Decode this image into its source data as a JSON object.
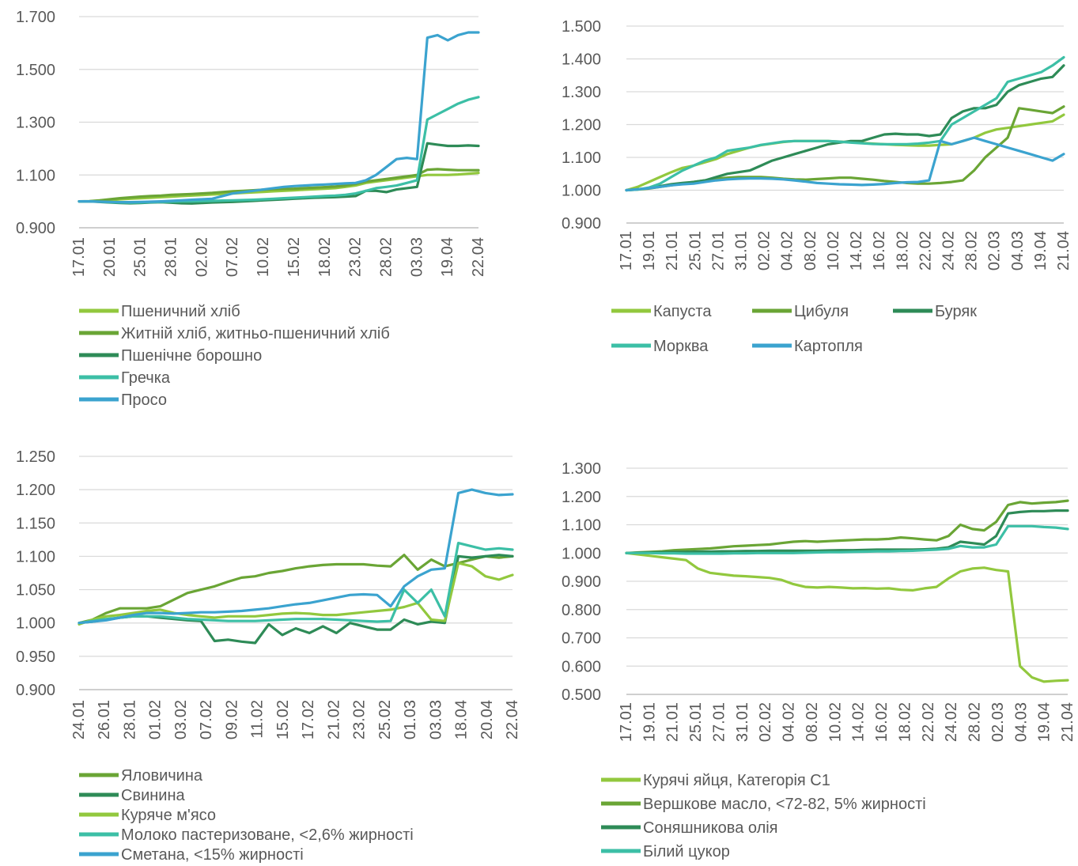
{
  "chart_data": [
    {
      "id": "bread-grains",
      "type": "line",
      "ylim": [
        0.9,
        1.7
      ],
      "y_ticks": [
        "0.900",
        "1.100",
        "1.300",
        "1.500",
        "1.700"
      ],
      "y_tick_values": [
        0.9,
        1.1,
        1.3,
        1.5,
        1.7
      ],
      "x_tick_labels": [
        "17.01",
        "20.01",
        "25.01",
        "28.01",
        "02.02",
        "07.02",
        "10.02",
        "15.02",
        "18.02",
        "23.02",
        "28.02",
        "03.03",
        "19.04",
        "22.04"
      ],
      "legend_layout": "column",
      "series": [
        {
          "name": "Пшеничний хліб",
          "color": "#92c83e",
          "values": [
            1.0,
            1.0,
            1.002,
            1.005,
            1.008,
            1.01,
            1.012,
            1.014,
            1.016,
            1.018,
            1.02,
            1.022,
            1.024,
            1.026,
            1.028,
            1.03,
            1.032,
            1.034,
            1.036,
            1.038,
            1.04,
            1.042,
            1.044,
            1.046,
            1.048,
            1.05,
            1.055,
            1.06,
            1.07,
            1.075,
            1.08,
            1.085,
            1.09,
            1.095,
            1.1,
            1.1,
            1.1,
            1.102,
            1.105,
            1.108
          ]
        },
        {
          "name": "Житній хліб, житньо-пшеничний хліб",
          "color": "#6aa535",
          "values": [
            1.0,
            1.001,
            1.004,
            1.008,
            1.012,
            1.015,
            1.018,
            1.02,
            1.022,
            1.025,
            1.026,
            1.028,
            1.03,
            1.032,
            1.035,
            1.038,
            1.04,
            1.042,
            1.044,
            1.046,
            1.047,
            1.048,
            1.05,
            1.052,
            1.054,
            1.056,
            1.06,
            1.066,
            1.075,
            1.08,
            1.085,
            1.09,
            1.095,
            1.1,
            1.12,
            1.122,
            1.12,
            1.118,
            1.118,
            1.118
          ]
        },
        {
          "name": "Пшенічне борошно",
          "color": "#2e8b57",
          "values": [
            1.0,
            1.0,
            0.998,
            0.996,
            0.994,
            0.993,
            0.994,
            0.996,
            0.997,
            0.995,
            0.993,
            0.992,
            0.994,
            0.996,
            0.997,
            0.998,
            1.0,
            1.002,
            1.004,
            1.006,
            1.008,
            1.01,
            1.012,
            1.014,
            1.015,
            1.016,
            1.018,
            1.02,
            1.04,
            1.04,
            1.035,
            1.045,
            1.05,
            1.055,
            1.22,
            1.215,
            1.21,
            1.21,
            1.212,
            1.21
          ]
        },
        {
          "name": "Гречка",
          "color": "#3cbfa6",
          "values": [
            1.0,
            1.0,
            0.999,
            0.997,
            0.996,
            0.995,
            0.996,
            0.997,
            0.998,
            0.999,
            1.0,
            1.0,
            1.001,
            1.002,
            1.003,
            1.004,
            1.005,
            1.006,
            1.008,
            1.01,
            1.012,
            1.014,
            1.016,
            1.018,
            1.02,
            1.022,
            1.025,
            1.03,
            1.04,
            1.05,
            1.055,
            1.06,
            1.07,
            1.08,
            1.31,
            1.33,
            1.35,
            1.37,
            1.385,
            1.395
          ]
        },
        {
          "name": "Просо",
          "color": "#3ba3cf",
          "values": [
            1.0,
            1.0,
            0.999,
            0.998,
            0.997,
            0.997,
            0.998,
            0.999,
            1.0,
            1.002,
            1.004,
            1.006,
            1.008,
            1.01,
            1.02,
            1.03,
            1.035,
            1.04,
            1.045,
            1.05,
            1.055,
            1.058,
            1.06,
            1.062,
            1.064,
            1.066,
            1.068,
            1.07,
            1.08,
            1.1,
            1.13,
            1.16,
            1.165,
            1.16,
            1.62,
            1.63,
            1.61,
            1.63,
            1.64,
            1.64
          ]
        }
      ]
    },
    {
      "id": "vegetables",
      "type": "line",
      "ylim": [
        0.9,
        1.5
      ],
      "y_ticks": [
        "0.900",
        "1.000",
        "1.100",
        "1.200",
        "1.300",
        "1.400",
        "1.500"
      ],
      "y_tick_values": [
        0.9,
        1.0,
        1.1,
        1.2,
        1.3,
        1.4,
        1.5
      ],
      "x_tick_labels": [
        "17.01",
        "19.01",
        "21.01",
        "25.01",
        "27.01",
        "31.01",
        "02.02",
        "04.02",
        "08.02",
        "10.02",
        "14.02",
        "16.02",
        "18.02",
        "22.02",
        "24.02",
        "28.02",
        "02.03",
        "04.03",
        "19.04",
        "21.04"
      ],
      "legend_layout": "grid3",
      "series": [
        {
          "name": "Капуста",
          "color": "#92c83e",
          "values": [
            1.0,
            1.01,
            1.025,
            1.04,
            1.055,
            1.068,
            1.075,
            1.085,
            1.095,
            1.11,
            1.12,
            1.13,
            1.137,
            1.142,
            1.147,
            1.15,
            1.15,
            1.15,
            1.15,
            1.148,
            1.146,
            1.144,
            1.142,
            1.14,
            1.138,
            1.137,
            1.136,
            1.136,
            1.138,
            1.14,
            1.15,
            1.16,
            1.175,
            1.185,
            1.19,
            1.195,
            1.2,
            1.205,
            1.21,
            1.23
          ]
        },
        {
          "name": "Цибуля",
          "color": "#6aa535",
          "values": [
            1.0,
            1.002,
            1.005,
            1.01,
            1.015,
            1.02,
            1.025,
            1.03,
            1.035,
            1.038,
            1.04,
            1.04,
            1.04,
            1.038,
            1.035,
            1.033,
            1.032,
            1.034,
            1.036,
            1.038,
            1.038,
            1.035,
            1.032,
            1.028,
            1.025,
            1.022,
            1.02,
            1.02,
            1.022,
            1.025,
            1.03,
            1.06,
            1.1,
            1.13,
            1.16,
            1.25,
            1.245,
            1.24,
            1.235,
            1.255
          ]
        },
        {
          "name": "Буряк",
          "color": "#2e8b57",
          "values": [
            1.0,
            1.003,
            1.006,
            1.012,
            1.018,
            1.022,
            1.025,
            1.03,
            1.04,
            1.05,
            1.055,
            1.06,
            1.075,
            1.09,
            1.1,
            1.11,
            1.12,
            1.13,
            1.14,
            1.145,
            1.15,
            1.15,
            1.16,
            1.17,
            1.172,
            1.17,
            1.17,
            1.165,
            1.17,
            1.22,
            1.24,
            1.25,
            1.25,
            1.26,
            1.3,
            1.32,
            1.33,
            1.34,
            1.345,
            1.38
          ]
        },
        {
          "name": "Морква",
          "color": "#3cbfa6",
          "values": [
            1.0,
            1.002,
            1.008,
            1.02,
            1.04,
            1.06,
            1.075,
            1.09,
            1.1,
            1.12,
            1.125,
            1.13,
            1.138,
            1.143,
            1.148,
            1.15,
            1.15,
            1.15,
            1.15,
            1.148,
            1.145,
            1.143,
            1.141,
            1.14,
            1.14,
            1.14,
            1.142,
            1.145,
            1.15,
            1.2,
            1.22,
            1.24,
            1.26,
            1.28,
            1.33,
            1.34,
            1.35,
            1.36,
            1.38,
            1.405
          ]
        },
        {
          "name": "Картопля",
          "color": "#3ba3cf",
          "values": [
            1.0,
            1.003,
            1.006,
            1.01,
            1.015,
            1.018,
            1.02,
            1.025,
            1.03,
            1.033,
            1.035,
            1.036,
            1.036,
            1.035,
            1.033,
            1.03,
            1.026,
            1.022,
            1.02,
            1.018,
            1.017,
            1.016,
            1.017,
            1.019,
            1.022,
            1.024,
            1.025,
            1.03,
            1.15,
            1.14,
            1.15,
            1.16,
            1.15,
            1.14,
            1.13,
            1.12,
            1.11,
            1.1,
            1.09,
            1.11
          ]
        }
      ]
    },
    {
      "id": "meat-dairy",
      "type": "line",
      "ylim": [
        0.9,
        1.25
      ],
      "y_ticks": [
        "0.900",
        "0.950",
        "1.000",
        "1.050",
        "1.100",
        "1.150",
        "1.200",
        "1.250"
      ],
      "y_tick_values": [
        0.9,
        0.95,
        1.0,
        1.05,
        1.1,
        1.15,
        1.2,
        1.25
      ],
      "x_tick_labels": [
        "24.01",
        "26.01",
        "28.01",
        "01.02",
        "03.02",
        "07.02",
        "09.02",
        "11.02",
        "15.02",
        "17.02",
        "21.02",
        "23.02",
        "25.02",
        "01.03",
        "03.03",
        "18.04",
        "20.04",
        "22.04"
      ],
      "legend_layout": "column",
      "series": [
        {
          "name": "Яловичина",
          "color": "#6aa535",
          "values": [
            1.0,
            1.005,
            1.015,
            1.022,
            1.022,
            1.022,
            1.025,
            1.035,
            1.045,
            1.05,
            1.055,
            1.062,
            1.068,
            1.07,
            1.075,
            1.078,
            1.082,
            1.085,
            1.087,
            1.088,
            1.088,
            1.088,
            1.086,
            1.085,
            1.102,
            1.08,
            1.095,
            1.085,
            1.09,
            1.095,
            1.1,
            1.098,
            1.1
          ]
        },
        {
          "name": "Свинина",
          "color": "#2e8b57",
          "values": [
            1.0,
            1.002,
            1.005,
            1.008,
            1.01,
            1.01,
            1.008,
            1.006,
            1.004,
            1.003,
            0.973,
            0.975,
            0.972,
            0.97,
            0.998,
            0.982,
            0.992,
            0.985,
            0.995,
            0.985,
            1.0,
            0.995,
            0.99,
            0.99,
            1.005,
            0.998,
            1.002,
            1.0,
            1.1,
            1.098,
            1.1,
            1.102,
            1.1
          ]
        },
        {
          "name": "Куряче м'ясо",
          "color": "#92c83e",
          "values": [
            0.998,
            1.005,
            1.01,
            1.012,
            1.015,
            1.018,
            1.02,
            1.015,
            1.012,
            1.01,
            1.008,
            1.01,
            1.01,
            1.01,
            1.012,
            1.014,
            1.015,
            1.014,
            1.012,
            1.012,
            1.014,
            1.016,
            1.018,
            1.02,
            1.024,
            1.03,
            1.005,
            1.003,
            1.09,
            1.085,
            1.07,
            1.065,
            1.072
          ]
        },
        {
          "name": "Молоко пастеризоване, <2,6% жирності",
          "color": "#3cbfa6",
          "values": [
            1.0,
            1.003,
            1.006,
            1.008,
            1.01,
            1.01,
            1.01,
            1.008,
            1.006,
            1.005,
            1.004,
            1.003,
            1.003,
            1.003,
            1.004,
            1.005,
            1.006,
            1.006,
            1.006,
            1.005,
            1.004,
            1.003,
            1.002,
            1.003,
            1.05,
            1.03,
            1.05,
            1.01,
            1.12,
            1.115,
            1.11,
            1.112,
            1.11
          ]
        },
        {
          "name": "Сметана, <15% жирності",
          "color": "#3ba3cf",
          "values": [
            1.0,
            1.002,
            1.004,
            1.008,
            1.012,
            1.015,
            1.015,
            1.014,
            1.015,
            1.016,
            1.016,
            1.017,
            1.018,
            1.02,
            1.022,
            1.025,
            1.028,
            1.03,
            1.034,
            1.038,
            1.042,
            1.043,
            1.042,
            1.025,
            1.055,
            1.07,
            1.08,
            1.082,
            1.195,
            1.2,
            1.195,
            1.192,
            1.193
          ]
        }
      ]
    },
    {
      "id": "eggs-oil-sugar",
      "type": "line",
      "ylim": [
        0.5,
        1.3
      ],
      "y_ticks": [
        "0.500",
        "0.600",
        "0.700",
        "0.800",
        "0.900",
        "1.000",
        "1.100",
        "1.200",
        "1.300"
      ],
      "y_tick_values": [
        0.5,
        0.6,
        0.7,
        0.8,
        0.9,
        1.0,
        1.1,
        1.2,
        1.3
      ],
      "x_tick_labels": [
        "17.01",
        "19.01",
        "21.01",
        "25.01",
        "27.01",
        "31.01",
        "02.02",
        "04.02",
        "08.02",
        "10.02",
        "14.02",
        "16.02",
        "18.02",
        "22.02",
        "24.02",
        "28.02",
        "02.03",
        "04.03",
        "19.04",
        "21.04"
      ],
      "legend_layout": "column",
      "series": [
        {
          "name": "Курячі яйця, Категорія С1",
          "color": "#92c83e",
          "values": [
            1.0,
            0.995,
            0.99,
            0.985,
            0.98,
            0.975,
            0.945,
            0.93,
            0.925,
            0.92,
            0.918,
            0.915,
            0.912,
            0.905,
            0.89,
            0.88,
            0.878,
            0.88,
            0.878,
            0.875,
            0.876,
            0.874,
            0.875,
            0.87,
            0.868,
            0.875,
            0.88,
            0.91,
            0.935,
            0.945,
            0.948,
            0.94,
            0.935,
            0.6,
            0.56,
            0.545,
            0.548,
            0.55
          ]
        },
        {
          "name": "Вершкове масло, <72-82, 5% жирності",
          "color": "#6aa535",
          "values": [
            1.0,
            1.002,
            1.004,
            1.006,
            1.01,
            1.012,
            1.014,
            1.016,
            1.02,
            1.024,
            1.026,
            1.028,
            1.03,
            1.035,
            1.04,
            1.042,
            1.04,
            1.042,
            1.044,
            1.046,
            1.048,
            1.048,
            1.05,
            1.055,
            1.052,
            1.048,
            1.045,
            1.06,
            1.1,
            1.085,
            1.08,
            1.11,
            1.17,
            1.18,
            1.175,
            1.178,
            1.18,
            1.185
          ]
        },
        {
          "name": "Соняшникова олія",
          "color": "#2e8b57",
          "values": [
            1.0,
            1.001,
            1.002,
            1.003,
            1.004,
            1.004,
            1.005,
            1.005,
            1.006,
            1.006,
            1.007,
            1.007,
            1.008,
            1.008,
            1.008,
            1.008,
            1.008,
            1.009,
            1.01,
            1.01,
            1.011,
            1.012,
            1.012,
            1.012,
            1.012,
            1.013,
            1.015,
            1.02,
            1.04,
            1.035,
            1.03,
            1.06,
            1.14,
            1.145,
            1.148,
            1.148,
            1.15,
            1.15
          ]
        },
        {
          "name": "Білий цукор",
          "color": "#3cbfa6",
          "values": [
            1.0,
            1.0,
            1.0,
            0.999,
            0.999,
            0.998,
            0.998,
            0.998,
            0.998,
            0.999,
            0.999,
            1.0,
            1.0,
            1.0,
            1.0,
            1.001,
            1.002,
            1.003,
            1.003,
            1.004,
            1.005,
            1.006,
            1.006,
            1.007,
            1.008,
            1.01,
            1.012,
            1.015,
            1.025,
            1.02,
            1.02,
            1.03,
            1.095,
            1.095,
            1.095,
            1.092,
            1.09,
            1.085
          ]
        }
      ]
    }
  ]
}
